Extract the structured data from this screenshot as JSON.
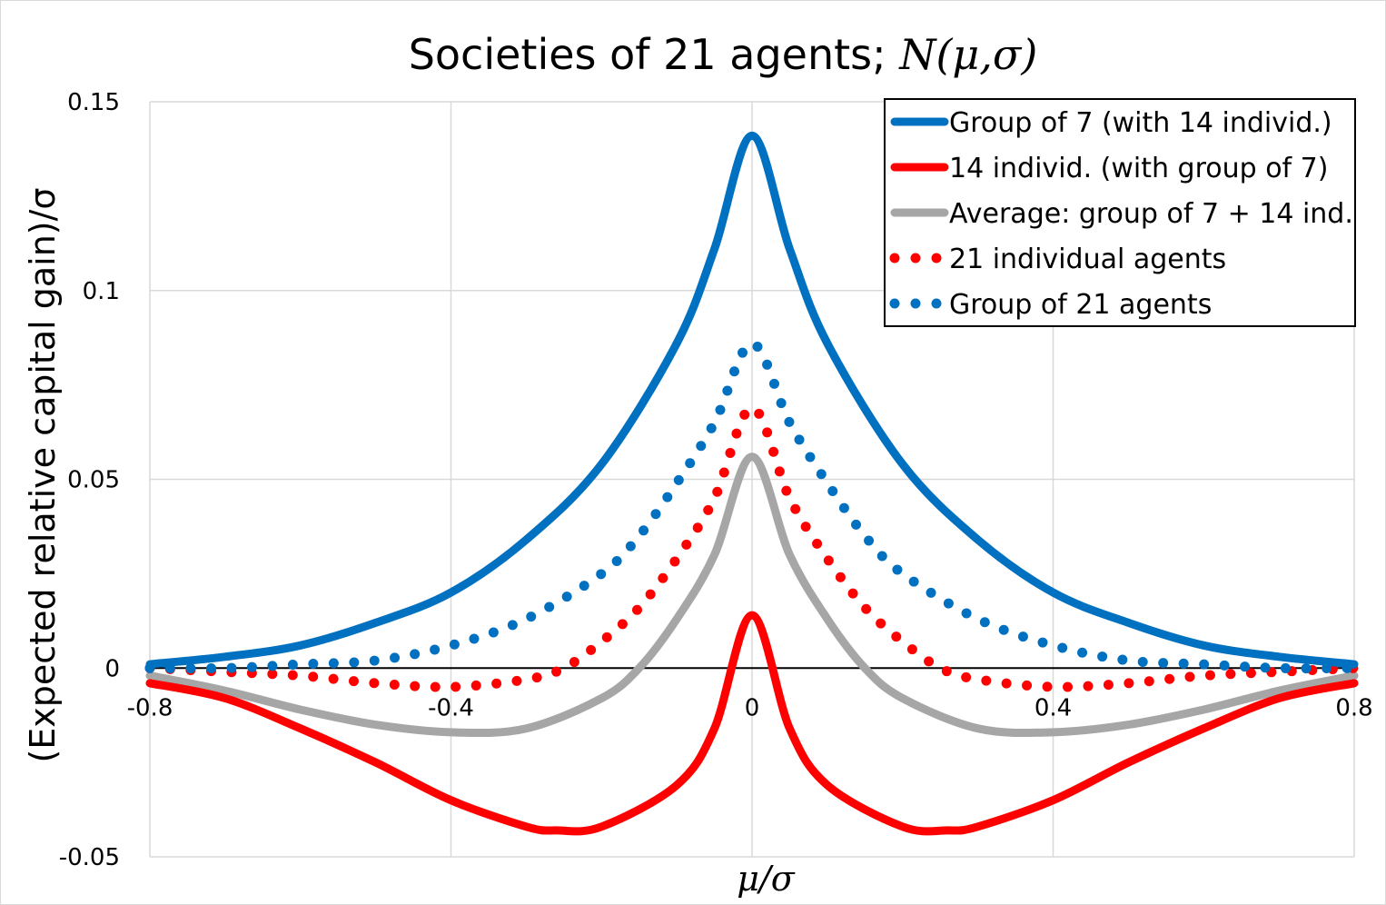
{
  "chart_data": {
    "type": "line",
    "title_prefix": "Societies of 21 agents; ",
    "title_math": "N(μ,σ)",
    "xlabel": "μ/σ",
    "ylabel": "(Expected relative capital gain)/σ",
    "xlim": [
      -0.8,
      0.8
    ],
    "ylim": [
      -0.05,
      0.15
    ],
    "x_ticks": [
      -0.8,
      -0.4,
      0,
      0.4,
      0.8
    ],
    "x_tick_labels": [
      "-0.8",
      "-0.4",
      "0",
      "0.4",
      "0.8"
    ],
    "y_ticks": [
      -0.05,
      0,
      0.05,
      0.1,
      0.15
    ],
    "y_tick_labels": [
      "-0.05",
      "0",
      "0.05",
      "0.1",
      "0.15"
    ],
    "grid": true,
    "legend_position": "top-right",
    "series": [
      {
        "name": "Group of 7 (with 14 individ.)",
        "color": "#0070C0",
        "style": "solid",
        "x": [
          -0.8,
          -0.7,
          -0.6,
          -0.5,
          -0.4,
          -0.3,
          -0.2,
          -0.1,
          -0.05,
          0,
          0.05,
          0.1,
          0.2,
          0.3,
          0.4,
          0.5,
          0.6,
          0.7,
          0.8
        ],
        "y": [
          0.001,
          0.003,
          0.006,
          0.012,
          0.02,
          0.034,
          0.054,
          0.086,
          0.111,
          0.141,
          0.111,
          0.086,
          0.054,
          0.034,
          0.02,
          0.012,
          0.006,
          0.003,
          0.001
        ]
      },
      {
        "name": "14 individ. (with group of 7)",
        "color": "#FF0000",
        "style": "solid",
        "x": [
          -0.8,
          -0.7,
          -0.6,
          -0.5,
          -0.4,
          -0.3,
          -0.26,
          -0.2,
          -0.1,
          -0.05,
          0,
          0.05,
          0.1,
          0.2,
          0.26,
          0.3,
          0.4,
          0.5,
          0.6,
          0.7,
          0.8
        ],
        "y": [
          -0.004,
          -0.008,
          -0.016,
          -0.025,
          -0.035,
          -0.042,
          -0.043,
          -0.042,
          -0.031,
          -0.016,
          0.014,
          -0.016,
          -0.031,
          -0.042,
          -0.043,
          -0.042,
          -0.035,
          -0.025,
          -0.016,
          -0.008,
          -0.004
        ]
      },
      {
        "name": "Average: group of 7 + 14 ind.",
        "color": "#A6A6A6",
        "style": "solid",
        "x": [
          -0.8,
          -0.7,
          -0.6,
          -0.5,
          -0.4,
          -0.3,
          -0.2,
          -0.15,
          -0.1,
          -0.05,
          0,
          0.05,
          0.1,
          0.15,
          0.2,
          0.3,
          0.4,
          0.5,
          0.6,
          0.7,
          0.8
        ],
        "y": [
          -0.002,
          -0.006,
          -0.011,
          -0.015,
          -0.017,
          -0.016,
          -0.008,
          0.0,
          0.013,
          0.03,
          0.056,
          0.03,
          0.013,
          0.0,
          -0.008,
          -0.016,
          -0.017,
          -0.015,
          -0.011,
          -0.006,
          -0.002
        ]
      },
      {
        "name": "21 individual agents",
        "color": "#FF0000",
        "style": "dotted",
        "x": [
          -0.8,
          -0.7,
          -0.6,
          -0.5,
          -0.4,
          -0.3,
          -0.25,
          -0.2,
          -0.15,
          -0.1,
          -0.05,
          0,
          0.05,
          0.1,
          0.15,
          0.2,
          0.25,
          0.3,
          0.4,
          0.5,
          0.6,
          0.7,
          0.8
        ],
        "y": [
          0.0,
          -0.001,
          -0.002,
          -0.004,
          -0.005,
          -0.003,
          0.0,
          0.007,
          0.016,
          0.029,
          0.045,
          0.069,
          0.045,
          0.029,
          0.016,
          0.007,
          0.0,
          -0.003,
          -0.005,
          -0.004,
          -0.002,
          -0.001,
          0.0
        ]
      },
      {
        "name": "Group of 21 agents",
        "color": "#0070C0",
        "style": "dotted",
        "x": [
          -0.8,
          -0.7,
          -0.6,
          -0.5,
          -0.4,
          -0.3,
          -0.2,
          -0.15,
          -0.1,
          -0.05,
          0,
          0.05,
          0.1,
          0.15,
          0.2,
          0.3,
          0.4,
          0.5,
          0.6,
          0.7,
          0.8
        ],
        "y": [
          0.0,
          0.0,
          0.001,
          0.002,
          0.006,
          0.013,
          0.025,
          0.035,
          0.049,
          0.065,
          0.086,
          0.065,
          0.049,
          0.035,
          0.025,
          0.013,
          0.006,
          0.002,
          0.001,
          0.0,
          0.0
        ]
      }
    ]
  }
}
